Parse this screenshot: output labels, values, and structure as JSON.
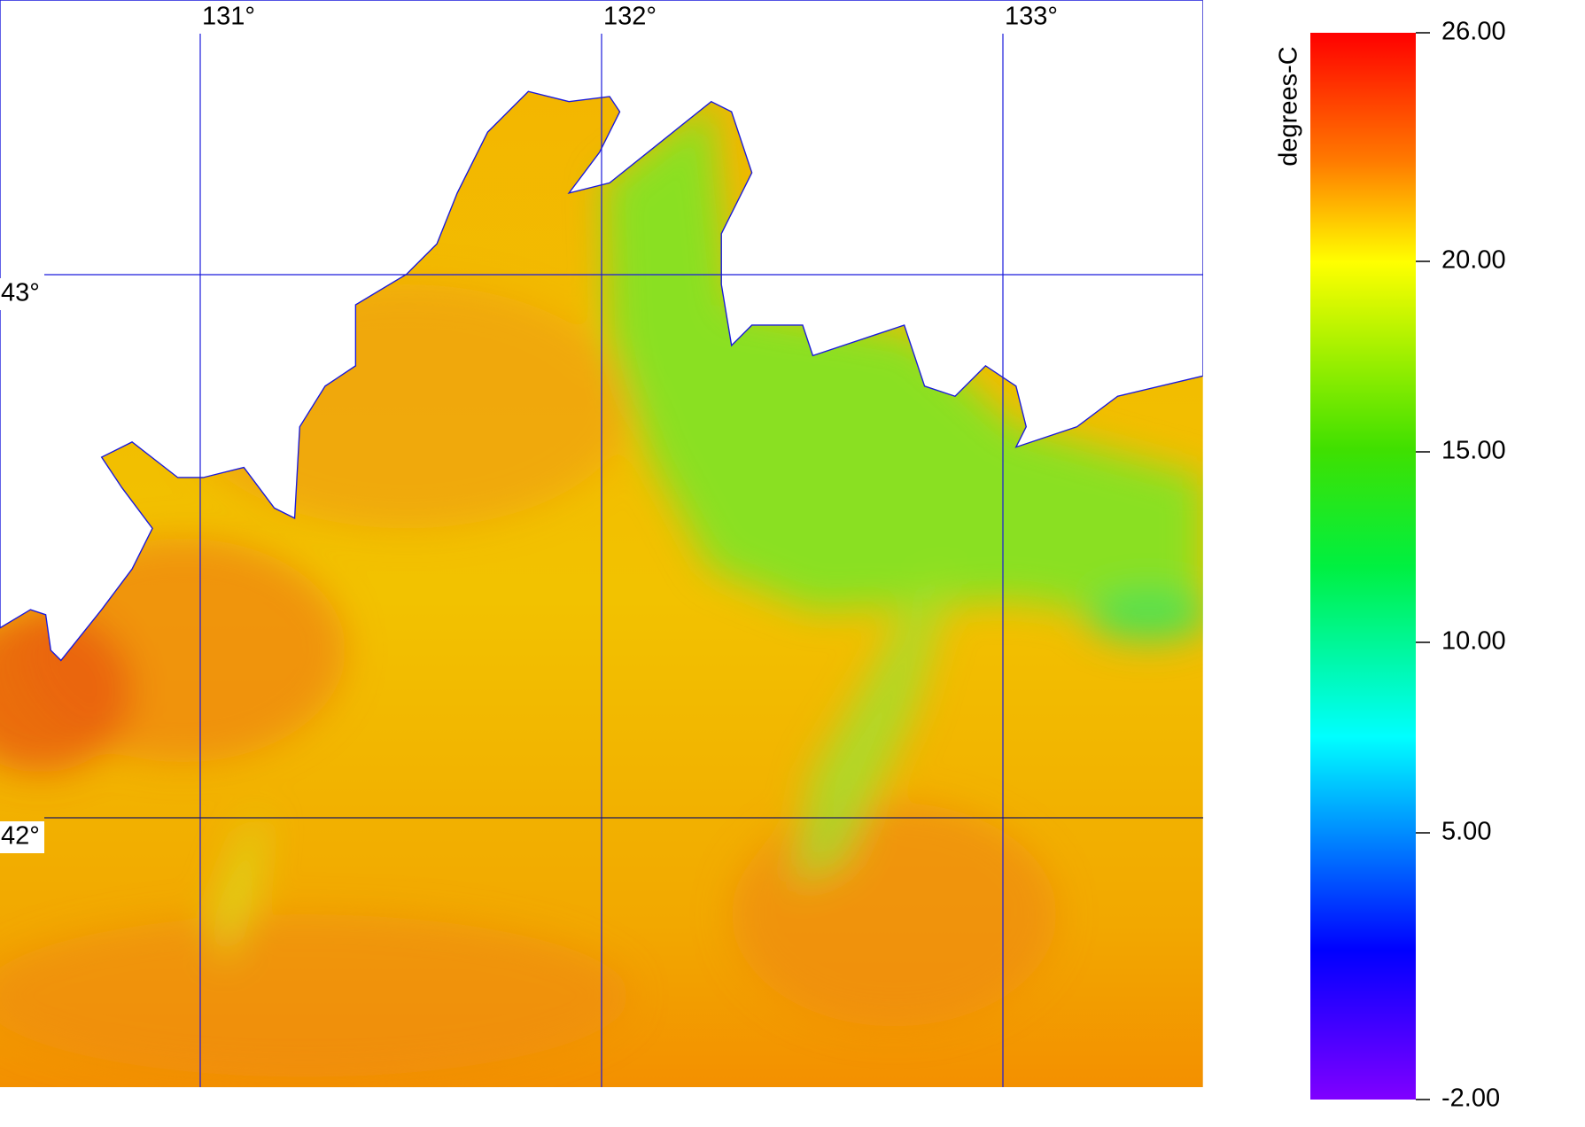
{
  "map": {
    "lon_ticks": [
      {
        "value": 131,
        "label": "131°"
      },
      {
        "value": 132,
        "label": "132°"
      },
      {
        "value": 133,
        "label": "133°"
      }
    ],
    "lat_ticks": [
      {
        "value": 43,
        "label": "43°"
      },
      {
        "value": 42,
        "label": "42°"
      }
    ],
    "colorbar": {
      "label": "degrees-C",
      "range": [
        -2,
        26
      ],
      "ticks": [
        {
          "value": 26,
          "label": "26.00"
        },
        {
          "value": 20,
          "label": "20.00"
        },
        {
          "value": 15,
          "label": "15.00"
        },
        {
          "value": 10,
          "label": "10.00"
        },
        {
          "value": 5,
          "label": "5.00"
        },
        {
          "value": -2,
          "label": "-2.00"
        }
      ]
    }
  }
}
